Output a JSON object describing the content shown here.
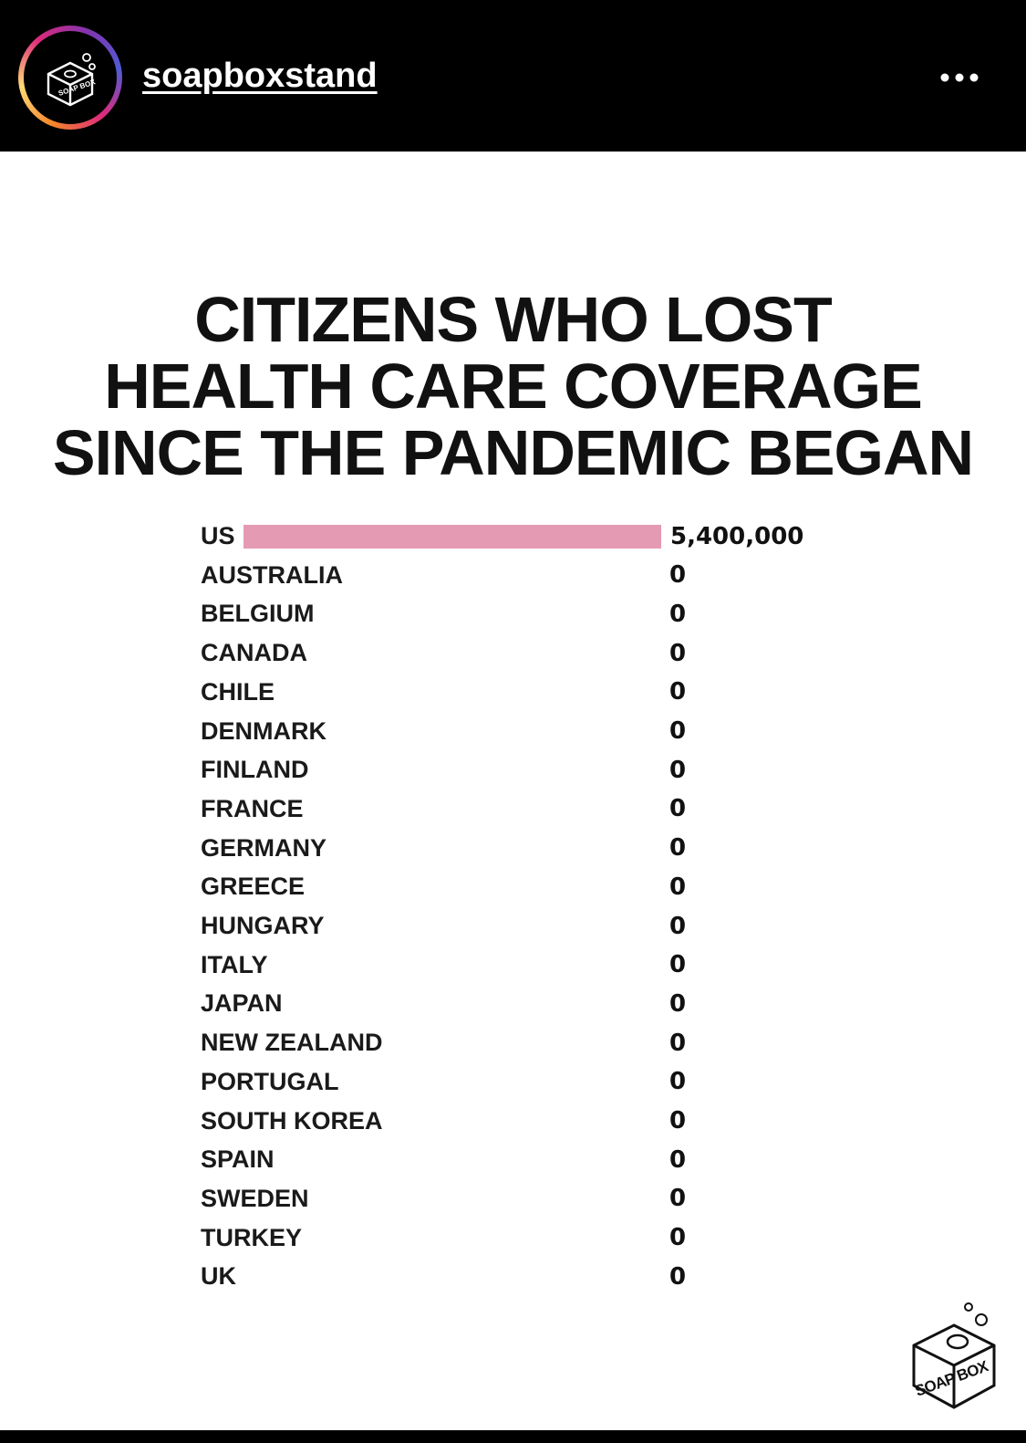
{
  "header": {
    "username": "soapboxstand",
    "more_icon": "more-horizontal-icon",
    "avatar_icon": "soap-box-logo"
  },
  "colors": {
    "bar": "#e59ab4",
    "header_bg": "#000000",
    "post_bg": "#ffffff"
  },
  "post": {
    "title_lines": [
      "CITIZENS WHO LOST",
      "HEALTH CARE COVERAGE",
      "SINCE THE PANDEMIC BEGAN"
    ],
    "logo_text": "SOAP BOX"
  },
  "chart_data": {
    "type": "bar",
    "orientation": "horizontal",
    "title": "CITIZENS WHO LOST HEALTH CARE COVERAGE SINCE THE PANDEMIC BEGAN",
    "categories": [
      "US",
      "AUSTRALIA",
      "BELGIUM",
      "CANADA",
      "CHILE",
      "DENMARK",
      "FINLAND",
      "FRANCE",
      "GERMANY",
      "GREECE",
      "HUNGARY",
      "ITALY",
      "JAPAN",
      "NEW ZEALAND",
      "PORTUGAL",
      "SOUTH KOREA",
      "SPAIN",
      "SWEDEN",
      "TURKEY",
      "UK"
    ],
    "values": [
      5400000,
      0,
      0,
      0,
      0,
      0,
      0,
      0,
      0,
      0,
      0,
      0,
      0,
      0,
      0,
      0,
      0,
      0,
      0,
      0
    ],
    "value_labels": [
      "5,400,000",
      "0",
      "0",
      "0",
      "0",
      "0",
      "0",
      "0",
      "0",
      "0",
      "0",
      "0",
      "0",
      "0",
      "0",
      "0",
      "0",
      "0",
      "0",
      "0"
    ],
    "xlabel": "",
    "ylabel": "",
    "xlim": [
      0,
      5400000
    ],
    "grid": false,
    "legend": "none"
  }
}
